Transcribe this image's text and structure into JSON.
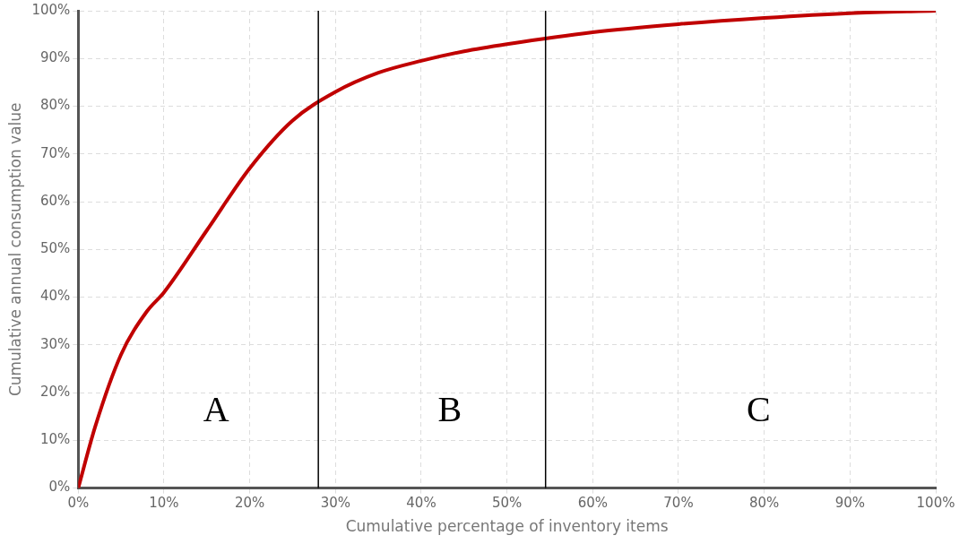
{
  "chart_data": {
    "type": "line",
    "xlabel": "Cumulative percentage of inventory items",
    "ylabel": "Cumulative annual consumption value",
    "x": [
      0,
      2,
      5,
      8,
      10,
      15,
      20,
      25,
      30,
      35,
      40,
      45,
      50,
      60,
      70,
      80,
      90,
      100
    ],
    "series": [
      {
        "color": "#c00000",
        "values": [
          0,
          13,
          28,
          37,
          41,
          54,
          67,
          77,
          83,
          87,
          89.5,
          91.5,
          93,
          95.5,
          97.2,
          98.5,
          99.5,
          100
        ]
      }
    ],
    "xlim": [
      0,
      100
    ],
    "ylim": [
      0,
      100
    ],
    "xticks": [
      {
        "value": 0,
        "label": "0%"
      },
      {
        "value": 10,
        "label": "10%"
      },
      {
        "value": 20,
        "label": "20%"
      },
      {
        "value": 30,
        "label": "30%"
      },
      {
        "value": 40,
        "label": "40%"
      },
      {
        "value": 50,
        "label": "50%"
      },
      {
        "value": 60,
        "label": "60%"
      },
      {
        "value": 70,
        "label": "70%"
      },
      {
        "value": 80,
        "label": "80%"
      },
      {
        "value": 90,
        "label": "90%"
      },
      {
        "value": 100,
        "label": "100%"
      }
    ],
    "yticks": [
      {
        "value": 0,
        "label": "0%"
      },
      {
        "value": 10,
        "label": "10%"
      },
      {
        "value": 20,
        "label": "20%"
      },
      {
        "value": 30,
        "label": "30%"
      },
      {
        "value": 40,
        "label": "40%"
      },
      {
        "value": 50,
        "label": "50%"
      },
      {
        "value": 60,
        "label": "60%"
      },
      {
        "value": 70,
        "label": "70%"
      },
      {
        "value": 80,
        "label": "80%"
      },
      {
        "value": 90,
        "label": "90%"
      },
      {
        "value": 100,
        "label": "100%"
      }
    ],
    "ref_lines": [
      {
        "axis": "x",
        "value": 28,
        "color": "#000000"
      },
      {
        "axis": "x",
        "value": 54.5,
        "color": "#000000"
      }
    ],
    "annotations": [
      "A",
      "B",
      "C"
    ],
    "grid": true,
    "legend": false,
    "marker": "none",
    "line_style": "solid"
  }
}
